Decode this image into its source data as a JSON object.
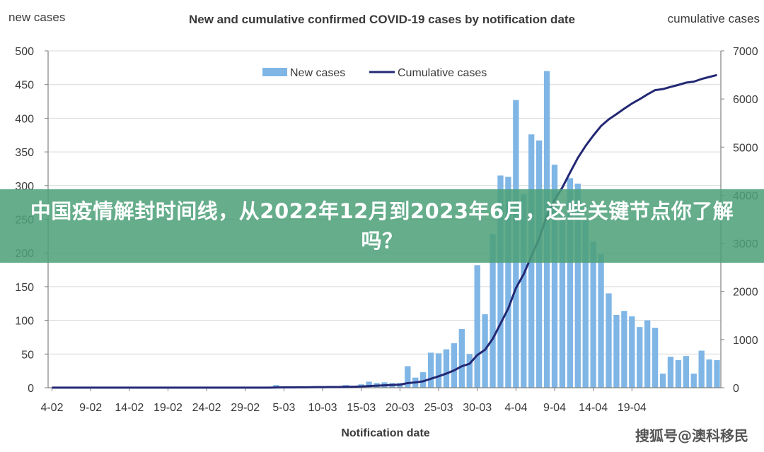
{
  "banner": {
    "text": "中国疫情解封时间线，从2022年12月到2023年6月，这些关键节点你了解吗？"
  },
  "watermark": {
    "text": "搜狐号@澳科移民"
  },
  "colors": {
    "bar": "#7fb6e6",
    "line": "#232874",
    "axis": "#808080",
    "grid": "#d9d9d9",
    "banner": "#4ca078"
  },
  "chart_data": {
    "type": "bar",
    "title": "New and cumulative confirmed COVID-19 cases by notification date",
    "xlabel": "Notification date",
    "ylabel_left": "new cases",
    "ylabel_right": "cumulative cases",
    "ylim_left": [
      0,
      500
    ],
    "ylim_right": [
      0,
      7000
    ],
    "yticks_left": [
      0,
      50,
      100,
      150,
      200,
      250,
      300,
      350,
      400,
      450,
      500
    ],
    "yticks_right": [
      0,
      1000,
      2000,
      3000,
      4000,
      5000,
      6000,
      7000
    ],
    "xtick_labels": [
      "4-02",
      "9-02",
      "14-02",
      "19-02",
      "24-02",
      "29-02",
      "5-03",
      "10-03",
      "15-03",
      "20-03",
      "25-03",
      "30-03",
      "4-04",
      "9-04",
      "14-04",
      "19-04"
    ],
    "grid": "horizontal",
    "legend_position": "top",
    "series": [
      {
        "name": "New cases",
        "type": "bar",
        "axis": "left",
        "x_start": "4-02",
        "values": [
          0,
          0,
          0,
          0,
          0,
          0,
          0,
          0,
          0,
          0,
          0,
          0,
          0,
          0,
          0,
          0,
          0,
          0,
          0,
          0,
          0,
          0,
          0,
          0,
          0,
          0,
          0,
          0,
          0,
          4,
          1,
          1,
          1,
          1,
          2,
          1,
          1,
          1,
          4,
          2,
          5,
          9,
          7,
          8,
          7,
          7,
          32,
          15,
          23,
          52,
          51,
          57,
          66,
          87,
          50,
          182,
          109,
          228,
          315,
          313,
          427,
          287,
          376,
          367,
          470,
          331,
          258,
          311,
          303,
          248,
          217,
          198,
          140,
          108,
          114,
          106,
          90,
          100,
          89,
          21,
          46,
          41,
          47,
          21,
          55,
          42,
          41
        ]
      },
      {
        "name": "Cumulative cases",
        "type": "line",
        "axis": "right",
        "x_start": "4-02",
        "values": [
          2,
          2,
          2,
          2,
          2,
          2,
          2,
          2,
          2,
          2,
          2,
          2,
          2,
          2,
          2,
          2,
          2,
          2,
          2,
          2,
          2,
          2,
          2,
          2,
          2,
          2,
          2,
          2,
          2,
          6,
          7,
          8,
          9,
          10,
          12,
          13,
          14,
          15,
          19,
          21,
          26,
          35,
          42,
          50,
          57,
          64,
          96,
          111,
          134,
          186,
          237,
          294,
          360,
          447,
          497,
          679,
          788,
          1016,
          1331,
          1644,
          2071,
          2358,
          2734,
          3101,
          3571,
          3902,
          4160,
          4471,
          4774,
          5022,
          5239,
          5437,
          5577,
          5685,
          5799,
          5905,
          5995,
          6095,
          6184,
          6205,
          6251,
          6292,
          6339,
          6360,
          6415,
          6457,
          6498
        ]
      }
    ]
  }
}
